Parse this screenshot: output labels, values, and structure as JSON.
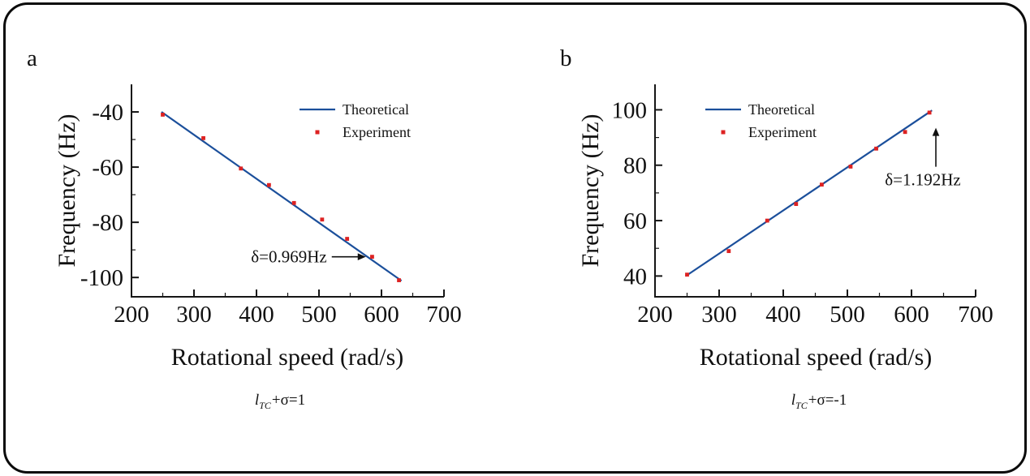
{
  "figure": {
    "panels": [
      {
        "letter": "a",
        "ylabel": "Frequency (Hz)",
        "xlabel": "Rotational speed (rad/s)",
        "caption": {
          "symbol": "l",
          "subscript": "TC",
          "equation": "+σ=1"
        }
      },
      {
        "letter": "b",
        "ylabel": "Frequency (Hz)",
        "xlabel": "Rotational speed (rad/s)",
        "caption": {
          "symbol": "l",
          "subscript": "TC",
          "equation": "+σ=-1"
        }
      }
    ]
  },
  "chart_data": [
    {
      "type": "line",
      "panel": "a",
      "title": "",
      "xlabel": "Rotational speed (rad/s)",
      "ylabel": "Frequency (Hz)",
      "xlim": [
        200,
        700
      ],
      "ylim": [
        -107,
        -30
      ],
      "xticks": [
        200,
        300,
        400,
        500,
        600,
        700
      ],
      "yticks": [
        -100,
        -80,
        -60,
        -40
      ],
      "x_minor_step": 50,
      "y_minor_step": 10,
      "grid": false,
      "legend_position": "upper-right-inside",
      "series": [
        {
          "name": "Theoretical",
          "style": "line",
          "color": "#1b4f9b",
          "x": [
            248,
            632
          ],
          "y": [
            -40.0,
            -101.2
          ]
        },
        {
          "name": "Experiment",
          "style": "scatter",
          "color": "#dd2222",
          "x": [
            250,
            315,
            375,
            420,
            460,
            505,
            545,
            585,
            628
          ],
          "y": [
            -41,
            -49.5,
            -60.5,
            -66.5,
            -73,
            -79,
            -86,
            -92.5,
            -101
          ]
        }
      ],
      "annotation": {
        "text": "δ=0.969Hz",
        "arrow": "right",
        "tip_x": 575,
        "tip_y": -92.5
      }
    },
    {
      "type": "line",
      "panel": "b",
      "title": "",
      "xlabel": "Rotational speed (rad/s)",
      "ylabel": "Frequency (Hz)",
      "xlim": [
        200,
        700
      ],
      "ylim": [
        32.5,
        109.2
      ],
      "xticks": [
        200,
        300,
        400,
        500,
        600,
        700
      ],
      "yticks": [
        40,
        60,
        80,
        100
      ],
      "x_minor_step": 50,
      "y_minor_step": 10,
      "grid": false,
      "legend_position": "upper-left-inside",
      "series": [
        {
          "name": "Theoretical",
          "style": "line",
          "color": "#1b4f9b",
          "x": [
            248,
            632
          ],
          "y": [
            40.0,
            99.8
          ]
        },
        {
          "name": "Experiment",
          "style": "scatter",
          "color": "#dd2222",
          "x": [
            250,
            315,
            375,
            420,
            460,
            505,
            545,
            590,
            628
          ],
          "y": [
            40.5,
            49,
            60,
            66,
            73,
            79.5,
            86,
            92,
            99
          ]
        }
      ],
      "annotation": {
        "text": "δ=1.192Hz",
        "arrow": "up",
        "tip_x": 638,
        "tip_y": 93.5
      }
    }
  ]
}
